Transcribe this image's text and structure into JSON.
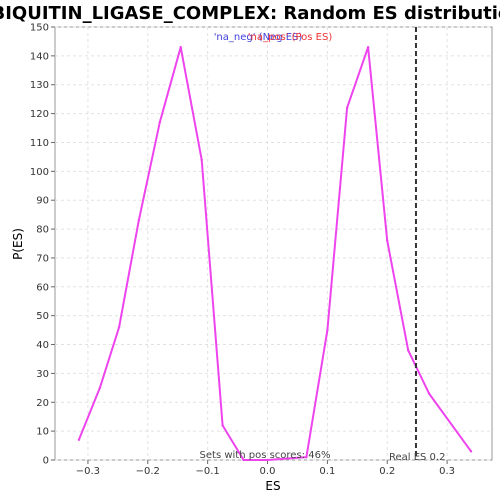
{
  "chart_data": {
    "type": "line",
    "title": "UBIQUITIN_LIGASE_COMPLEX: Random ES distribution",
    "xlabel": "ES",
    "ylabel": "P(ES)",
    "xlim": [
      -0.355,
      0.375
    ],
    "ylim": [
      0,
      150
    ],
    "x_ticks": [
      -0.3,
      -0.2,
      -0.1,
      0.0,
      0.1,
      0.2,
      0.3
    ],
    "x_tick_labels": [
      "−0.3",
      "−0.2",
      "−0.1",
      "0.0",
      "0.1",
      "0.2",
      "0.3"
    ],
    "y_ticks": [
      0,
      10,
      20,
      30,
      40,
      50,
      60,
      70,
      80,
      90,
      100,
      110,
      120,
      130,
      140,
      150
    ],
    "y_tick_labels": [
      "0",
      "10",
      "20",
      "30",
      "40",
      "50",
      "60",
      "70",
      "80",
      "90",
      "100",
      "110",
      "120",
      "130",
      "140",
      "150"
    ],
    "grid": true,
    "series": [
      {
        "name": "'na_neg' (Neg ES)",
        "color": "#4040dd",
        "x": [],
        "y": []
      },
      {
        "name": "'na_pos' (Pos ES)",
        "color": "#ee3333",
        "x": [],
        "y": []
      },
      {
        "name": "",
        "color": "#ee44ee",
        "x": [
          -0.315,
          -0.28,
          -0.248,
          -0.215,
          -0.18,
          -0.145,
          -0.11,
          -0.075,
          -0.04,
          0.0,
          0.065,
          0.1,
          0.133,
          0.168,
          0.2,
          0.235,
          0.27,
          0.34
        ],
        "y": [
          7,
          25,
          46,
          83,
          117,
          143,
          104,
          12,
          0,
          0,
          1,
          45,
          122,
          143,
          76,
          38,
          23,
          3
        ]
      }
    ],
    "real_es": {
      "value": 0.248,
      "label": "Real ES 0.2",
      "color": "#333333"
    },
    "annotation": "Sets with pos scores: 46%",
    "legend": {
      "placement": "top-center",
      "neg_label": "'na_neg' (Neg ES)",
      "pos_label": "'na_pos' (Pos ES)",
      "neg_color": "#4040dd",
      "pos_color": "#ee3333"
    }
  }
}
